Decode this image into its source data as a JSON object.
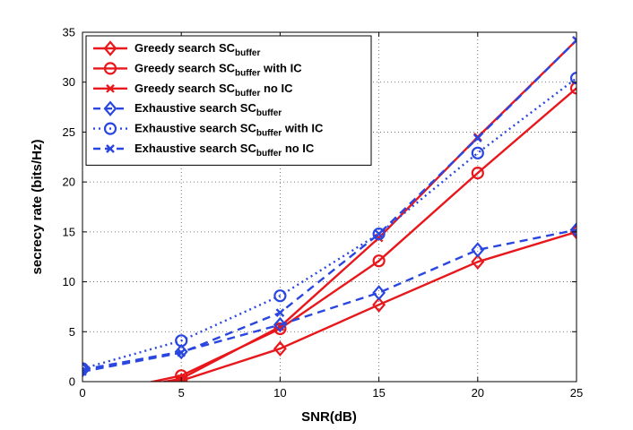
{
  "chart_data": {
    "type": "line",
    "xlabel": "SNR(dB)",
    "ylabel": "secrecy rate (bits/Hz)",
    "xlim": [
      0,
      25
    ],
    "ylim": [
      0,
      35
    ],
    "xticks": [
      0,
      5,
      10,
      15,
      20,
      25
    ],
    "yticks": [
      0,
      5,
      10,
      15,
      20,
      25,
      30,
      35
    ],
    "grid": true,
    "legend_position": "top-left",
    "x": [
      0,
      5,
      10,
      15,
      20,
      25
    ],
    "series": [
      {
        "name": "Greedy search SC_buffer",
        "label_main": "Greedy search SC",
        "label_sub": "buffer",
        "label_suffix": "",
        "color": "#e8171b",
        "dash": "solid",
        "marker": "diamond",
        "values": [
          -1.8,
          0.1,
          3.3,
          7.7,
          12.0,
          15.0
        ]
      },
      {
        "name": "Greedy search SC_buffer with IC",
        "label_main": "Greedy search SC",
        "label_sub": "buffer",
        "label_suffix": " with IC",
        "color": "#e8171b",
        "dash": "solid",
        "marker": "circle",
        "values": [
          -1.5,
          0.6,
          5.3,
          12.1,
          20.9,
          29.4
        ]
      },
      {
        "name": "Greedy search SC_buffer no IC",
        "label_main": "Greedy search SC",
        "label_sub": "buffer",
        "label_suffix": " no IC",
        "color": "#e8171b",
        "dash": "solid",
        "marker": "x",
        "values": [
          -1.5,
          0.3,
          5.5,
          14.4,
          24.5,
          34.2
        ]
      },
      {
        "name": "Exhaustive search SC_buffer",
        "label_main": "Exhaustive search SC",
        "label_sub": "buffer",
        "label_suffix": "",
        "color": "#2a46e0",
        "dash": "dashed",
        "marker": "diamond",
        "values": [
          1.2,
          3.0,
          5.7,
          8.9,
          13.2,
          15.2
        ]
      },
      {
        "name": "Exhaustive search SC_buffer with IC",
        "label_main": "Exhaustive search SC",
        "label_sub": "buffer",
        "label_suffix": " with IC",
        "color": "#2a46e0",
        "dash": "dotted",
        "marker": "circle",
        "values": [
          1.3,
          4.1,
          8.6,
          14.8,
          22.9,
          30.4
        ]
      },
      {
        "name": "Exhaustive search SC_buffer no IC",
        "label_main": "Exhaustive search SC",
        "label_sub": "buffer",
        "label_suffix": " no IC",
        "color": "#2a46e0",
        "dash": "dashed",
        "marker": "x",
        "values": [
          1.0,
          2.9,
          6.9,
          14.8,
          24.4,
          34.2
        ]
      }
    ]
  }
}
